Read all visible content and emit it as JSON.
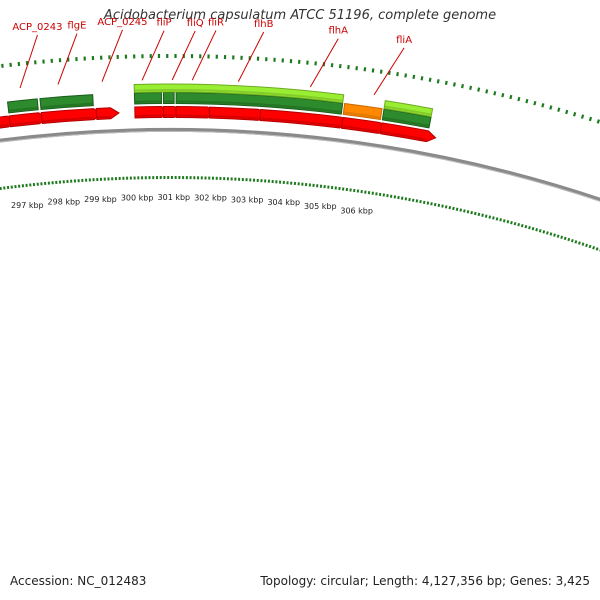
{
  "title": "Acidobacterium capsulatum ATCC 51196, complete genome",
  "footer": {
    "accession": "Accession: NC_012483",
    "info": "Topology: circular; Length: 4,127,356 bp; Genes: 3,425"
  },
  "colors": {
    "cds": "#ff0000",
    "cds_dark": "#b00000",
    "gene_green": "#2d8a2d",
    "gene_lime": "#99ee33",
    "gene_orange": "#ff8800",
    "backbone": "#8a8a8a",
    "tick": "#1e7a1e",
    "label": "#cc0000"
  },
  "kbp_ticks": [
    "297 kbp",
    "298 kbp",
    "299 kbp",
    "300 kbp",
    "301 kbp",
    "302 kbp",
    "303 kbp",
    "304 kbp",
    "305 kbp",
    "306 kbp"
  ],
  "gene_labels": [
    "ACP_0243",
    "flgE",
    "ACP_0245",
    "fliP",
    "fliQ",
    "fliR",
    "flhB",
    "flhA",
    "fliA"
  ]
}
